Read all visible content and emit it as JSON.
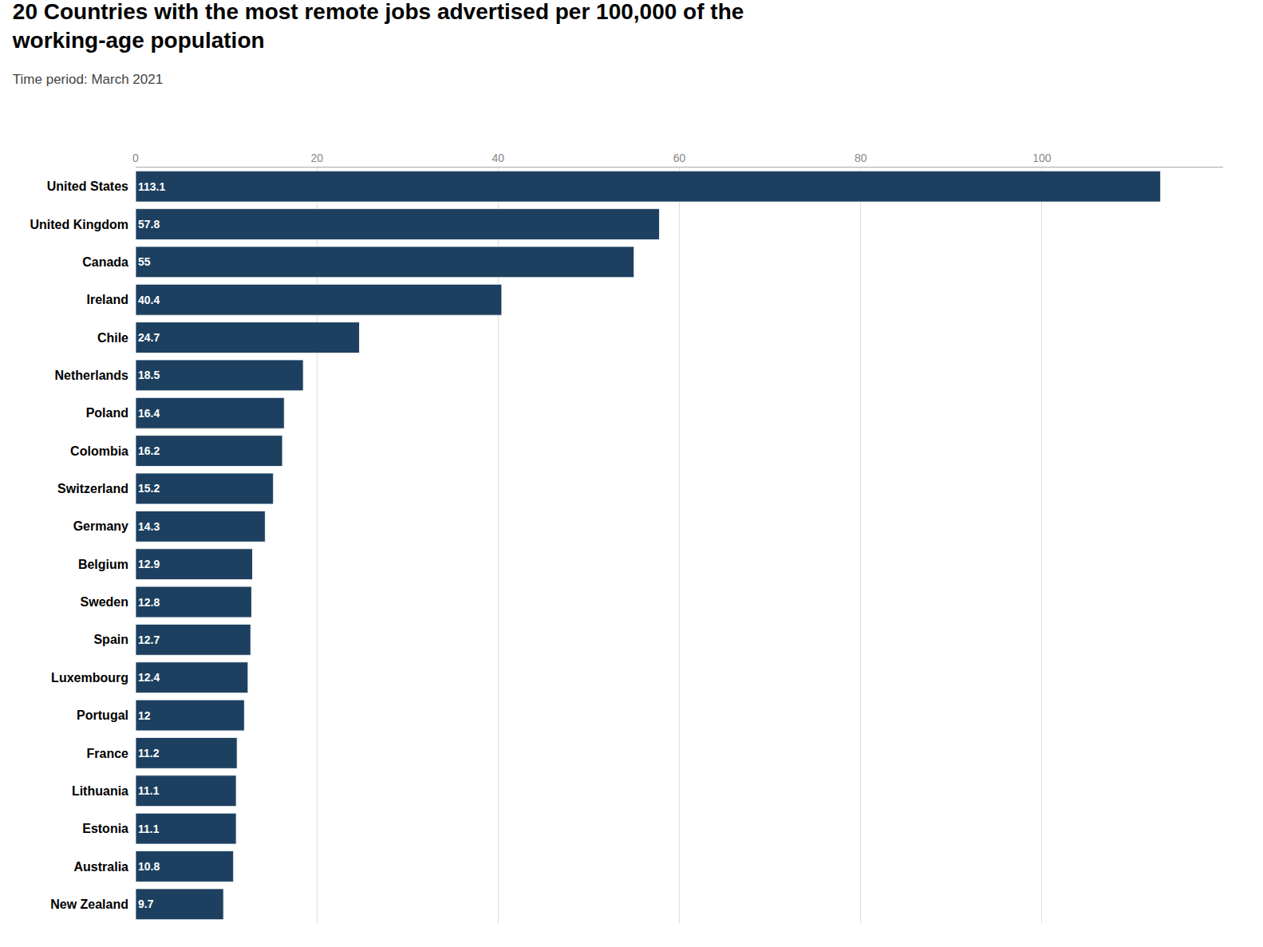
{
  "chart_data": {
    "type": "bar",
    "orientation": "horizontal",
    "title": "20 Countries with the most remote jobs advertised per 100,000 of the\nworking-age population",
    "subtitle": "Time period: March 2021",
    "categories": [
      "United States",
      "United Kingdom",
      "Canada",
      "Ireland",
      "Chile",
      "Netherlands",
      "Poland",
      "Colombia",
      "Switzerland",
      "Germany",
      "Belgium",
      "Sweden",
      "Spain",
      "Luxembourg",
      "Portugal",
      "France",
      "Lithuania",
      "Estonia",
      "Australia",
      "New Zealand"
    ],
    "values": [
      113.1,
      57.8,
      55.0,
      40.4,
      24.7,
      18.5,
      16.4,
      16.2,
      15.2,
      14.3,
      12.9,
      12.8,
      12.7,
      12.4,
      12.0,
      11.2,
      11.1,
      11.1,
      10.8,
      9.7
    ],
    "color": "#1d4060",
    "xlim": [
      0,
      120
    ],
    "xticks": [
      0,
      20,
      40,
      60,
      80,
      100
    ],
    "grid": true,
    "data_labels": true
  }
}
